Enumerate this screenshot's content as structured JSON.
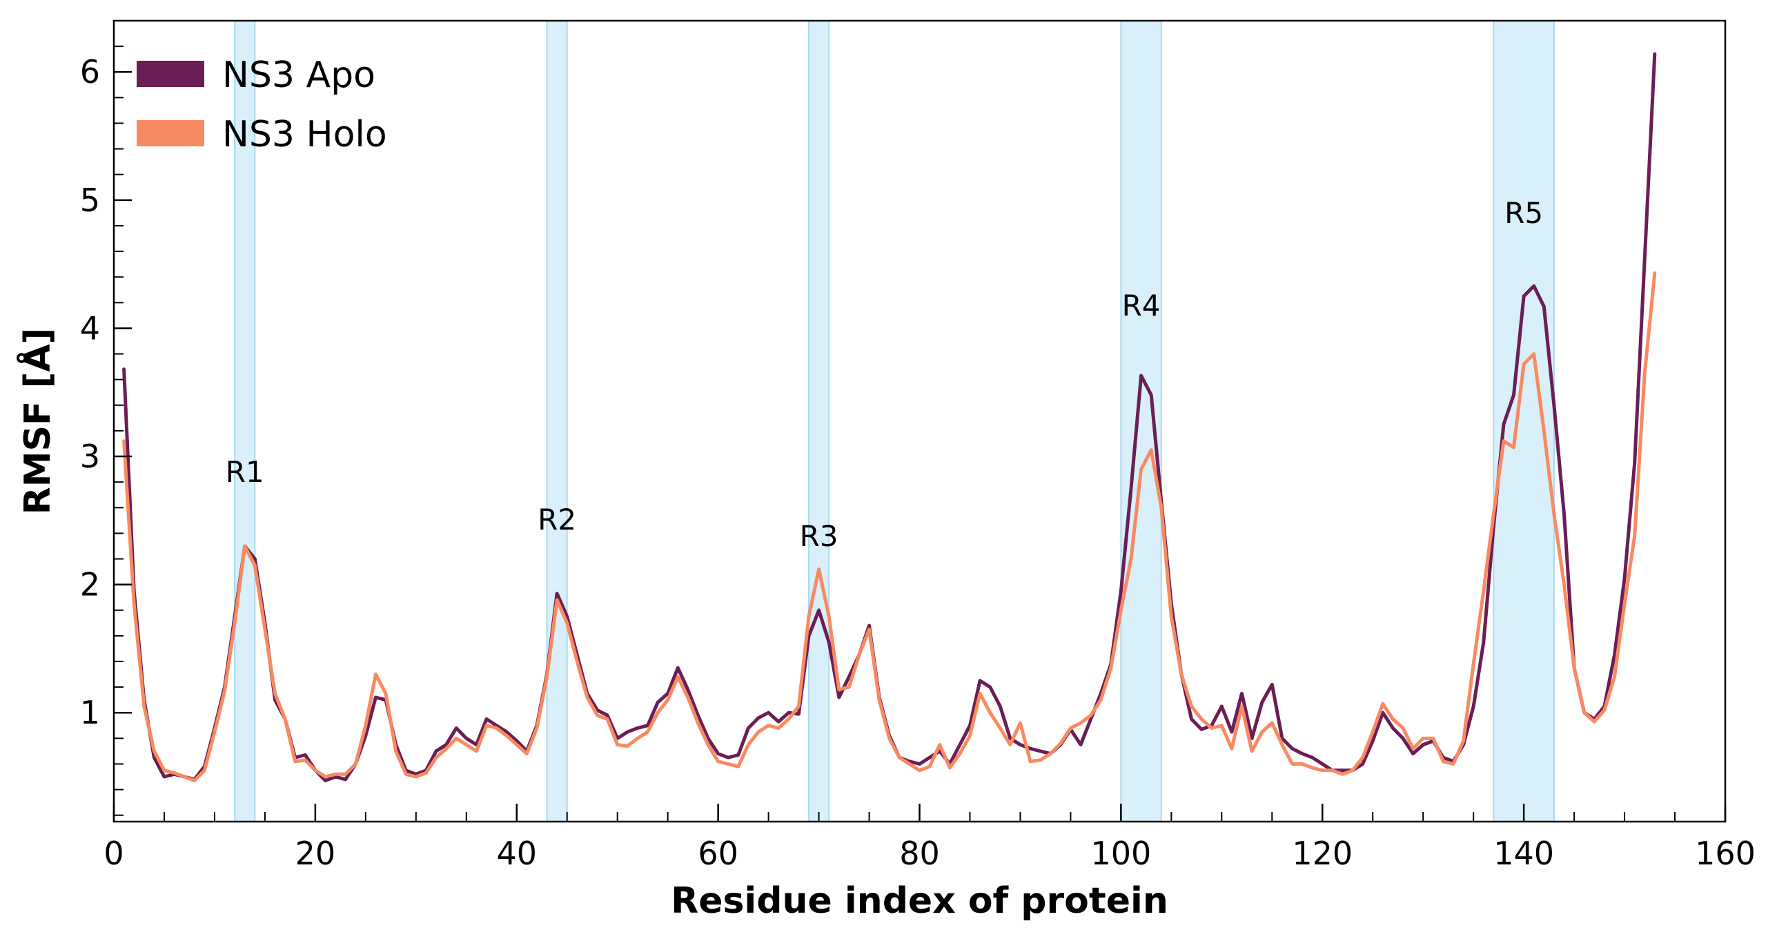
{
  "chart_data": {
    "type": "line",
    "title": "",
    "xlabel": "Residue index of protein",
    "ylabel": "RMSF [Å]",
    "xlim": [
      0,
      160
    ],
    "ylim": [
      0.15,
      6.4
    ],
    "xticks": [
      0,
      20,
      40,
      60,
      80,
      100,
      120,
      140,
      160
    ],
    "yticks": [
      1,
      2,
      3,
      4,
      5,
      6
    ],
    "grid": false,
    "legend": "top-left",
    "regions": [
      {
        "label": "R1",
        "start": 12,
        "end": 14,
        "label_y": 2.8
      },
      {
        "label": "R2",
        "start": 43,
        "end": 45,
        "label_y": 2.43
      },
      {
        "label": "R3",
        "start": 69,
        "end": 71,
        "label_y": 2.3
      },
      {
        "label": "R4",
        "start": 100,
        "end": 104,
        "label_y": 4.1
      },
      {
        "label": "R5",
        "start": 137,
        "end": 143,
        "label_y": 4.82
      }
    ],
    "x": [
      1,
      2,
      3,
      4,
      5,
      6,
      7,
      8,
      9,
      10,
      11,
      12,
      13,
      14,
      15,
      16,
      17,
      18,
      19,
      20,
      21,
      22,
      23,
      24,
      25,
      26,
      27,
      28,
      29,
      30,
      31,
      32,
      33,
      34,
      35,
      36,
      37,
      38,
      39,
      40,
      41,
      42,
      43,
      44,
      45,
      46,
      47,
      48,
      49,
      50,
      51,
      52,
      53,
      54,
      55,
      56,
      57,
      58,
      59,
      60,
      61,
      62,
      63,
      64,
      65,
      66,
      67,
      68,
      69,
      70,
      71,
      72,
      73,
      74,
      75,
      76,
      77,
      78,
      79,
      80,
      81,
      82,
      83,
      84,
      85,
      86,
      87,
      88,
      89,
      90,
      91,
      92,
      93,
      94,
      95,
      96,
      97,
      98,
      99,
      100,
      101,
      102,
      103,
      104,
      105,
      106,
      107,
      108,
      109,
      110,
      111,
      112,
      113,
      114,
      115,
      116,
      117,
      118,
      119,
      120,
      121,
      122,
      123,
      124,
      125,
      126,
      127,
      128,
      129,
      130,
      131,
      132,
      133,
      134,
      135,
      136,
      137,
      138,
      139,
      140,
      141,
      142,
      143,
      144,
      145,
      146,
      147,
      148,
      149,
      150,
      151,
      152,
      153
    ],
    "series": [
      {
        "name": "NS3 Apo",
        "color": "#6b1e55",
        "values": [
          3.68,
          1.95,
          1.1,
          0.65,
          0.5,
          0.52,
          0.5,
          0.48,
          0.58,
          0.88,
          1.2,
          1.75,
          2.3,
          2.2,
          1.7,
          1.1,
          0.95,
          0.65,
          0.67,
          0.55,
          0.47,
          0.5,
          0.48,
          0.6,
          0.82,
          1.12,
          1.1,
          0.75,
          0.55,
          0.52,
          0.55,
          0.7,
          0.75,
          0.88,
          0.8,
          0.75,
          0.95,
          0.9,
          0.85,
          0.78,
          0.7,
          0.9,
          1.3,
          1.93,
          1.75,
          1.45,
          1.15,
          1.02,
          0.98,
          0.8,
          0.85,
          0.88,
          0.9,
          1.08,
          1.15,
          1.35,
          1.18,
          0.98,
          0.8,
          0.68,
          0.65,
          0.67,
          0.88,
          0.96,
          1.0,
          0.93,
          1.0,
          0.99,
          1.6,
          1.8,
          1.55,
          1.12,
          1.28,
          1.45,
          1.68,
          1.12,
          0.82,
          0.65,
          0.62,
          0.6,
          0.65,
          0.7,
          0.6,
          0.75,
          0.9,
          1.25,
          1.2,
          1.05,
          0.8,
          0.75,
          0.72,
          0.7,
          0.68,
          0.75,
          0.87,
          0.75,
          0.95,
          1.15,
          1.38,
          1.95,
          2.75,
          3.63,
          3.48,
          2.65,
          1.85,
          1.3,
          0.95,
          0.87,
          0.9,
          1.05,
          0.85,
          1.15,
          0.8,
          1.08,
          1.22,
          0.8,
          0.72,
          0.68,
          0.65,
          0.6,
          0.55,
          0.55,
          0.55,
          0.6,
          0.78,
          1.0,
          0.88,
          0.8,
          0.68,
          0.75,
          0.78,
          0.65,
          0.62,
          0.75,
          1.05,
          1.55,
          2.45,
          3.25,
          3.48,
          4.25,
          4.33,
          4.17,
          3.4,
          2.55,
          1.35,
          1.0,
          0.95,
          1.05,
          1.45,
          2.05,
          2.95,
          4.55,
          6.14
        ]
      },
      {
        "name": "NS3 Holo",
        "color": "#f88a62",
        "values": [
          3.12,
          1.85,
          1.05,
          0.7,
          0.55,
          0.53,
          0.5,
          0.47,
          0.55,
          0.85,
          1.17,
          1.7,
          2.3,
          2.15,
          1.65,
          1.15,
          0.95,
          0.62,
          0.63,
          0.55,
          0.5,
          0.52,
          0.52,
          0.6,
          0.9,
          1.3,
          1.15,
          0.7,
          0.52,
          0.5,
          0.53,
          0.65,
          0.72,
          0.8,
          0.75,
          0.7,
          0.9,
          0.88,
          0.82,
          0.75,
          0.68,
          0.88,
          1.28,
          1.88,
          1.7,
          1.4,
          1.12,
          0.98,
          0.95,
          0.75,
          0.74,
          0.8,
          0.85,
          1.0,
          1.1,
          1.28,
          1.12,
          0.92,
          0.75,
          0.62,
          0.6,
          0.58,
          0.75,
          0.85,
          0.9,
          0.88,
          0.95,
          1.05,
          1.75,
          2.12,
          1.75,
          1.18,
          1.2,
          1.45,
          1.65,
          1.1,
          0.8,
          0.65,
          0.6,
          0.55,
          0.58,
          0.75,
          0.57,
          0.68,
          0.82,
          1.15,
          1.0,
          0.88,
          0.75,
          0.92,
          0.62,
          0.63,
          0.68,
          0.76,
          0.88,
          0.92,
          0.98,
          1.1,
          1.35,
          1.8,
          2.2,
          2.9,
          3.05,
          2.6,
          1.75,
          1.3,
          1.05,
          0.95,
          0.88,
          0.9,
          0.72,
          1.05,
          0.7,
          0.85,
          0.92,
          0.75,
          0.6,
          0.6,
          0.57,
          0.55,
          0.55,
          0.52,
          0.55,
          0.65,
          0.85,
          1.07,
          0.95,
          0.88,
          0.72,
          0.8,
          0.8,
          0.62,
          0.6,
          0.78,
          1.38,
          1.95,
          2.55,
          3.12,
          3.07,
          3.72,
          3.8,
          3.2,
          2.55,
          2.0,
          1.35,
          1.0,
          0.93,
          1.02,
          1.28,
          1.85,
          2.38,
          3.65,
          4.43
        ]
      }
    ]
  }
}
